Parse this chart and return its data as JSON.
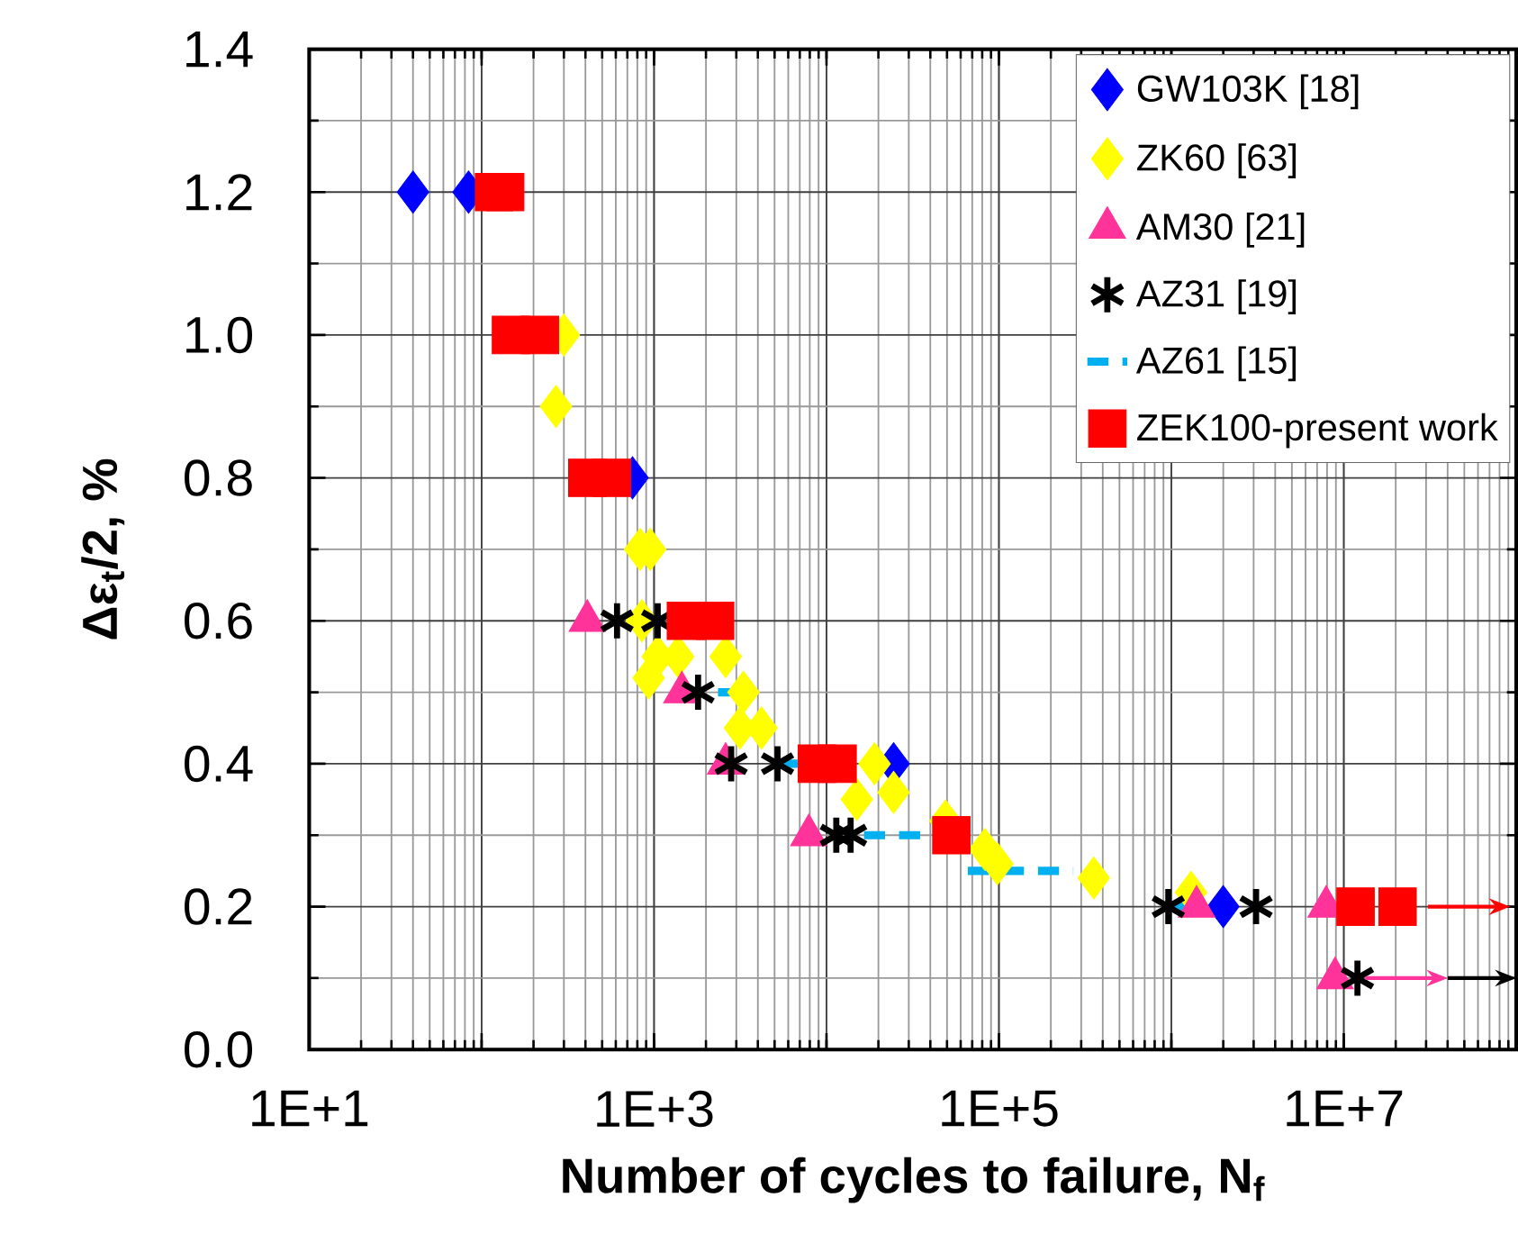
{
  "chart_data": {
    "type": "scatter",
    "xlabel": "Number of cycles to failure, N$_{f}$",
    "ylabel": "Δε$_{t}$/2, %",
    "log": "x",
    "grid": true,
    "legend": "top right",
    "xlim": [
      10,
      100000000
    ],
    "ylim": [
      0,
      1.4
    ],
    "xticks": [
      {
        "value": 10,
        "label": "1E+1"
      },
      {
        "value": 100,
        "label": null
      },
      {
        "value": 1000,
        "label": "1E+3"
      },
      {
        "value": 10000,
        "label": null
      },
      {
        "value": 100000,
        "label": "1E+5"
      },
      {
        "value": 1000000,
        "label": null
      },
      {
        "value": 10000000,
        "label": "1E+7"
      },
      {
        "value": 100000000,
        "label": null
      }
    ],
    "yticks": [
      {
        "value": 0,
        "label": "0.0"
      },
      0.2,
      0.4,
      0.6,
      0.8,
      {
        "value": 1,
        "label": "1.0"
      },
      1.2,
      1.4
    ],
    "series": [
      {
        "name": "GW103K [18]",
        "color": "#0000ff",
        "marker": "diamond",
        "x": [
          40,
          84,
          750,
          24500,
          2000000
        ],
        "values": [
          1.2,
          1.2,
          0.8,
          0.4,
          0.2
        ]
      },
      {
        "name": "ZK60 [63]",
        "color": "#ffff00",
        "marker": "diamond",
        "x": [
          300,
          270,
          830,
          950,
          850,
          1050,
          1380,
          2600,
          930,
          3300,
          3150,
          4200,
          19000,
          15000,
          24500,
          49000,
          83000,
          98000,
          355000,
          1300000
        ],
        "values": [
          1.0,
          0.9,
          0.7,
          0.7,
          0.6,
          0.55,
          0.55,
          0.55,
          0.52,
          0.5,
          0.45,
          0.45,
          0.4,
          0.35,
          0.36,
          0.32,
          0.28,
          0.26,
          0.24,
          0.22
        ]
      },
      {
        "name": "AM30 [21]",
        "color": "#ff3399",
        "marker": "triangle",
        "x": [
          410,
          1450,
          2600,
          7900,
          1400000,
          7900000,
          8900000
        ],
        "values": [
          0.6,
          0.5,
          0.4,
          0.3,
          0.2,
          0.2,
          0.1
        ]
      },
      {
        "name": "AZ31 [19]",
        "color": "#000000",
        "marker": "cross",
        "x": [
          610,
          1050,
          1800,
          2800,
          5200,
          11400,
          13800,
          960000,
          3100000,
          12000000
        ],
        "values": [
          0.6,
          0.6,
          0.5,
          0.4,
          0.4,
          0.3,
          0.3,
          0.2,
          0.2,
          0.1
        ]
      },
      {
        "name": "AZ61 [15]",
        "color": "#00b0f0",
        "type": "line",
        "line_style": "dashed",
        "marker": "none",
        "x": [
          2350,
          3200,
          null,
          5200,
          6800,
          null,
          16500,
          35000,
          null,
          66000,
          270000,
          null,
          1000000,
          1300000
        ],
        "values": [
          0.5,
          0.5,
          null,
          0.4,
          0.4,
          null,
          0.3,
          0.3,
          null,
          0.25,
          0.25,
          null,
          0.2,
          0.2
        ]
      },
      {
        "name": "ZEK100-present work",
        "color": "#ff0000",
        "marker": "square",
        "x": [
          118,
          137,
          148,
          218,
          410,
          570,
          1530,
          2260,
          8800,
          11600,
          53000,
          11700000,
          20500000
        ],
        "values": [
          1.2,
          1.2,
          1.0,
          1.0,
          0.8,
          0.8,
          0.6,
          0.6,
          0.4,
          0.4,
          0.3,
          0.2,
          0.2
        ]
      }
    ]
  }
}
